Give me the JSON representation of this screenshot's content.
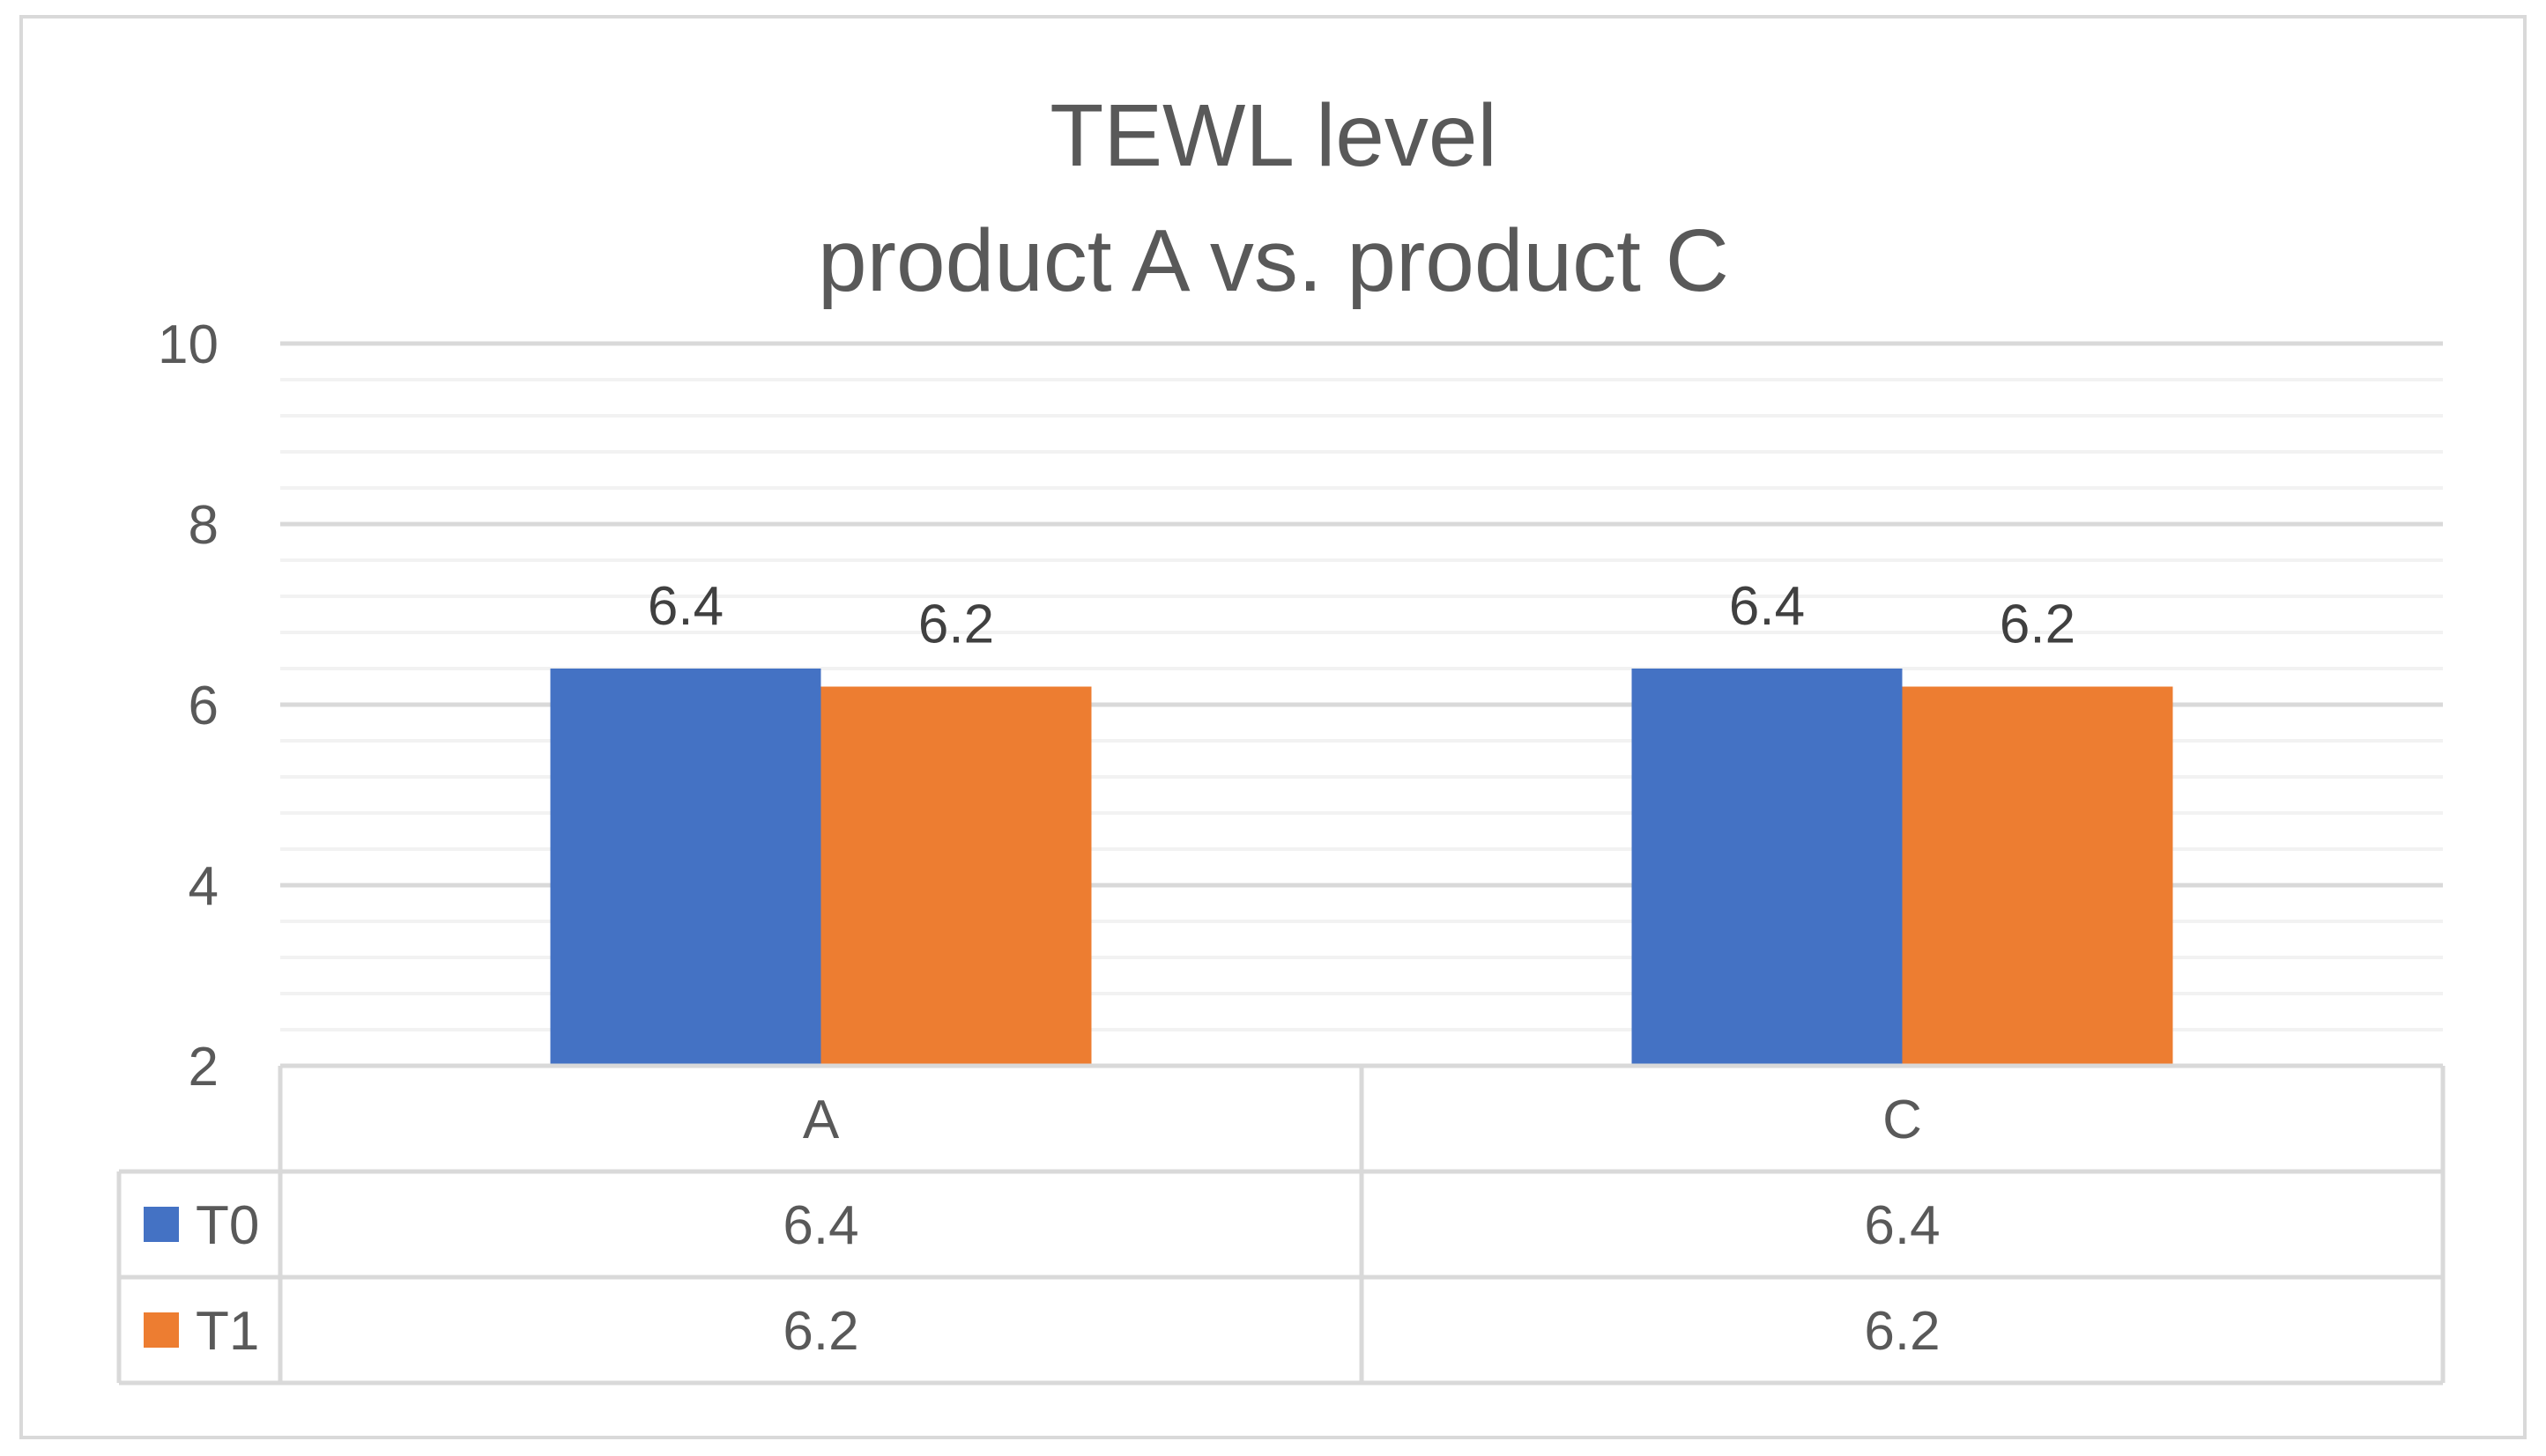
{
  "chart_data": {
    "type": "bar",
    "title": "TEWL level",
    "subtitle": "product A vs. product C",
    "categories": [
      "A",
      "C"
    ],
    "series": [
      {
        "name": "T0",
        "values": [
          6.4,
          6.4
        ],
        "color": "#4472c4"
      },
      {
        "name": "T1",
        "values": [
          6.2,
          6.2
        ],
        "color": "#ed7d31"
      }
    ],
    "ylim": [
      2,
      10
    ],
    "yticks": [
      2,
      4,
      6,
      8,
      10
    ],
    "minor_grid_step": 0.4,
    "grid": true,
    "data_labels": true,
    "legend": "data-table",
    "data_table": true
  }
}
